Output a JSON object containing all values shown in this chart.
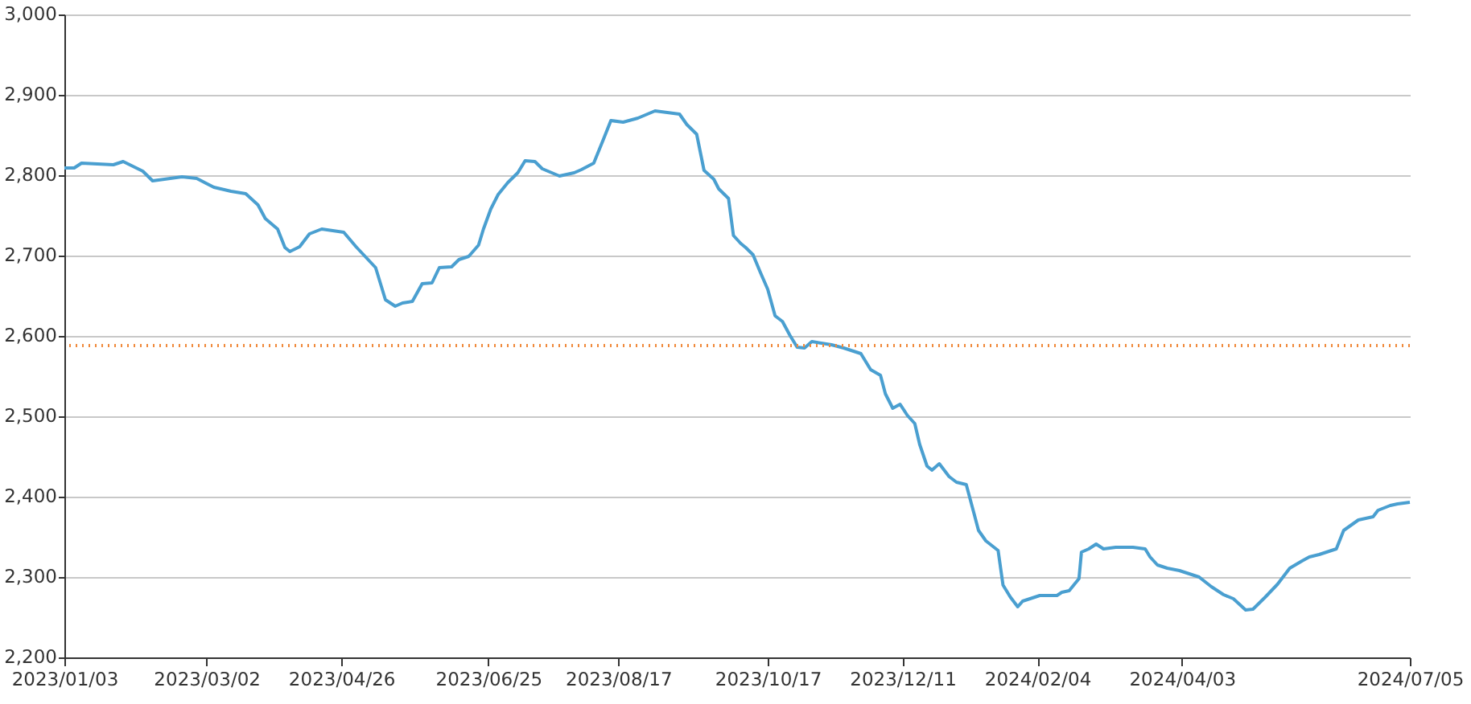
{
  "chart_data": {
    "type": "line",
    "x": [
      "2023-01-03",
      "2023-01-07",
      "2023-01-10",
      "2023-01-23",
      "2023-01-27",
      "2023-02-04",
      "2023-02-08",
      "2023-02-20",
      "2023-02-26",
      "2023-03-05",
      "2023-03-12",
      "2023-03-18",
      "2023-03-23",
      "2023-03-26",
      "2023-03-31",
      "2023-04-03",
      "2023-04-05",
      "2023-04-09",
      "2023-04-13",
      "2023-04-18",
      "2023-04-27",
      "2023-05-02",
      "2023-05-06",
      "2023-05-10",
      "2023-05-12",
      "2023-05-14",
      "2023-05-18",
      "2023-05-21",
      "2023-05-25",
      "2023-05-29",
      "2023-06-02",
      "2023-06-05",
      "2023-06-10",
      "2023-06-13",
      "2023-06-17",
      "2023-06-21",
      "2023-06-23",
      "2023-06-26",
      "2023-06-29",
      "2023-07-03",
      "2023-07-07",
      "2023-07-10",
      "2023-07-14",
      "2023-07-17",
      "2023-07-24",
      "2023-07-30",
      "2023-08-02",
      "2023-08-07",
      "2023-08-11",
      "2023-08-14",
      "2023-08-19",
      "2023-08-25",
      "2023-09-01",
      "2023-09-06",
      "2023-09-11",
      "2023-09-14",
      "2023-09-18",
      "2023-09-21",
      "2023-09-25",
      "2023-09-27",
      "2023-10-01",
      "2023-10-03",
      "2023-10-06",
      "2023-10-08",
      "2023-10-11",
      "2023-10-14",
      "2023-10-17",
      "2023-10-20",
      "2023-10-23",
      "2023-10-26",
      "2023-10-29",
      "2023-11-01",
      "2023-11-04",
      "2023-11-12",
      "2023-11-17",
      "2023-11-24",
      "2023-11-28",
      "2023-12-02",
      "2023-12-04",
      "2023-12-07",
      "2023-12-10",
      "2023-12-13",
      "2023-12-16",
      "2023-12-18",
      "2023-12-21",
      "2023-12-23",
      "2023-12-26",
      "2023-12-30",
      "2024-01-02",
      "2024-01-06",
      "2024-01-09",
      "2024-01-11",
      "2024-01-14",
      "2024-01-19",
      "2024-01-21",
      "2024-01-24",
      "2024-01-27",
      "2024-01-29",
      "2024-02-01",
      "2024-02-05",
      "2024-02-12",
      "2024-02-14",
      "2024-02-17",
      "2024-02-21",
      "2024-02-22",
      "2024-02-25",
      "2024-02-28",
      "2024-03-02",
      "2024-03-07",
      "2024-03-14",
      "2024-03-19",
      "2024-03-21",
      "2024-03-24",
      "2024-03-28",
      "2024-04-02",
      "2024-04-10",
      "2024-04-15",
      "2024-04-20",
      "2024-04-24",
      "2024-04-29",
      "2024-05-02",
      "2024-05-07",
      "2024-05-12",
      "2024-05-17",
      "2024-05-22",
      "2024-05-25",
      "2024-05-29",
      "2024-06-05",
      "2024-06-08",
      "2024-06-14",
      "2024-06-20",
      "2024-06-22",
      "2024-06-27",
      "2024-06-30",
      "2024-07-05"
    ],
    "series": [
      {
        "color": "#4a9fd0",
        "values": [
          2809,
          2809,
          2815,
          2813,
          2817,
          2805,
          2793,
          2798,
          2796,
          2785,
          2780,
          2777,
          2763,
          2746,
          2733,
          2710,
          2705,
          2711,
          2727,
          2733,
          2729,
          2711,
          2698,
          2685,
          2665,
          2645,
          2637,
          2641,
          2643,
          2665,
          2666,
          2685,
          2686,
          2695,
          2699,
          2713,
          2733,
          2758,
          2776,
          2791,
          2803,
          2818,
          2817,
          2808,
          2799,
          2803,
          2807,
          2815,
          2845,
          2868,
          2866,
          2871,
          2880,
          2878,
          2876,
          2863,
          2851,
          2806,
          2795,
          2783,
          2771,
          2725,
          2715,
          2710,
          2701,
          2679,
          2658,
          2625,
          2618,
          2601,
          2586,
          2585,
          2593,
          2589,
          2585,
          2578,
          2558,
          2551,
          2528,
          2510,
          2515,
          2501,
          2491,
          2465,
          2438,
          2433,
          2441,
          2425,
          2418,
          2415,
          2381,
          2358,
          2345,
          2333,
          2290,
          2275,
          2263,
          2270,
          2273,
          2277,
          2277,
          2281,
          2283,
          2298,
          2331,
          2335,
          2341,
          2335,
          2337,
          2337,
          2335,
          2325,
          2315,
          2311,
          2308,
          2300,
          2288,
          2278,
          2273,
          2259,
          2260,
          2275,
          2291,
          2311,
          2320,
          2325,
          2328,
          2335,
          2358,
          2371,
          2375,
          2383,
          2389,
          2391,
          2393
        ]
      }
    ],
    "xlim": [
      "2023-01-03",
      "2024-07-05"
    ],
    "xticks": [
      {
        "value": "2023-01-03",
        "label": "2023/01/03"
      },
      {
        "value": "2023-03-02",
        "label": "2023/03/02"
      },
      {
        "value": "2023-04-26",
        "label": "2023/04/26"
      },
      {
        "value": "2023-06-25",
        "label": "2023/06/25"
      },
      {
        "value": "2023-08-17",
        "label": "2023/08/17"
      },
      {
        "value": "2023-10-17",
        "label": "2023/10/17"
      },
      {
        "value": "2023-12-11",
        "label": "2023/12/11"
      },
      {
        "value": "2024-02-04",
        "label": "2024/02/04"
      },
      {
        "value": "2024-04-03",
        "label": "2024/04/03"
      },
      {
        "value": "2024-07-05",
        "label": "2024/07/05"
      }
    ],
    "ylim": [
      2200,
      3000
    ],
    "yticks": [
      {
        "value": 2200,
        "label": "2,200"
      },
      {
        "value": 2300,
        "label": "2,300"
      },
      {
        "value": 2400,
        "label": "2,400"
      },
      {
        "value": 2500,
        "label": "2,500"
      },
      {
        "value": 2600,
        "label": "2,600"
      },
      {
        "value": 2700,
        "label": "2,700"
      },
      {
        "value": 2800,
        "label": "2,800"
      },
      {
        "value": 2900,
        "label": "2,900"
      },
      {
        "value": 3000,
        "label": "3,000"
      }
    ],
    "ref_lines": [
      {
        "axis": "y",
        "value": 2588,
        "color": "#f08a3c",
        "line_style": "dotted"
      }
    ],
    "grid": "y",
    "marker": "none",
    "line_style": "solid"
  }
}
